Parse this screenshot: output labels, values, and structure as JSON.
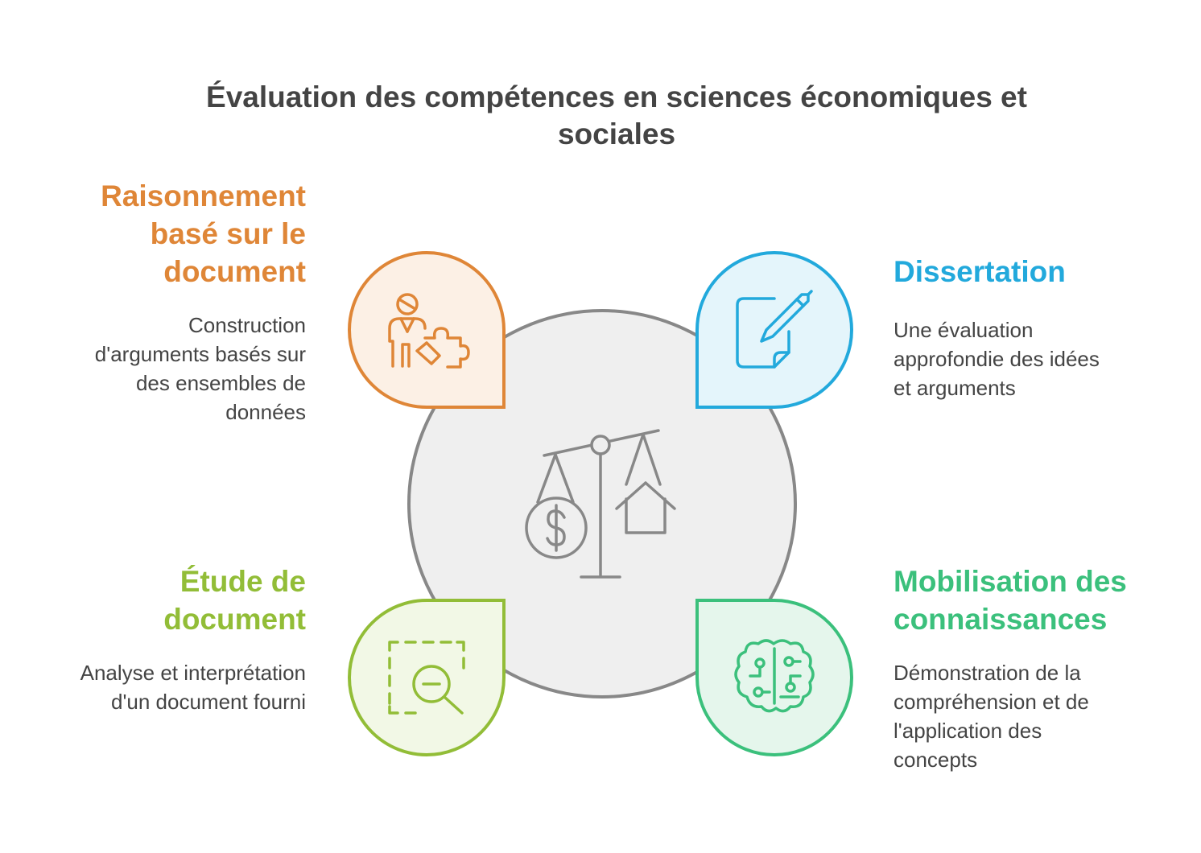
{
  "title": "Évaluation des compétences en sciences économiques et sociales",
  "center": {
    "icon": "balance-scale-icon"
  },
  "items": [
    {
      "key": "raisonnement",
      "heading": "Raisonnement basé sur le document",
      "heading_lines": [
        "Raisonnement",
        "basé sur le",
        "document"
      ],
      "desc_lines": [
        "Construction",
        "d'arguments basés sur",
        "des ensembles de",
        "données"
      ],
      "icon": "person-puzzle-icon",
      "color": "#df8637",
      "fill": "#fcf0e5"
    },
    {
      "key": "dissertation",
      "heading": "Dissertation",
      "heading_lines": [
        "Dissertation"
      ],
      "desc_lines": [
        "Une évaluation",
        "approfondie des idées",
        "et arguments"
      ],
      "icon": "pen-on-paper-icon",
      "color": "#22a9dc",
      "fill": "#e4f5fb"
    },
    {
      "key": "etude",
      "heading": "Étude de document",
      "heading_lines": [
        "Étude de",
        "document"
      ],
      "desc_lines": [
        "Analyse et interprétation",
        "d'un document fourni"
      ],
      "icon": "zoom-out-selection-icon",
      "color": "#92bd37",
      "fill": "#f2f8e6"
    },
    {
      "key": "mobilisation",
      "heading": "Mobilisation des connaissances",
      "heading_lines": [
        "Mobilisation des",
        "connaissances"
      ],
      "desc_lines": [
        "Démonstration de la",
        "compréhension et de",
        "l'application des",
        "concepts"
      ],
      "icon": "circuit-brain-icon",
      "color": "#3bc07c",
      "fill": "#e5f6ec"
    }
  ]
}
